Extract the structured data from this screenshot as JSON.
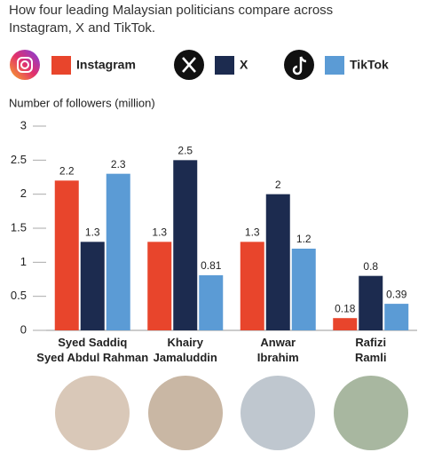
{
  "chart_data": {
    "type": "bar",
    "title": "How four leading Malaysian politicians compare across Instagram, X and TikTok.",
    "y_axis_label": "Number of followers (million)",
    "categories": [
      "Syed Saddiq\nSyed Abdul Rahman",
      "Khairy\nJamaluddin",
      "Anwar\nIbrahim",
      "Rafizi\nRamli"
    ],
    "series": [
      {
        "name": "Instagram",
        "color": "#e8452c",
        "values": [
          2.2,
          1.3,
          1.3,
          0.18
        ]
      },
      {
        "name": "X",
        "color": "#1c2b4f",
        "values": [
          1.3,
          2.5,
          2,
          0.8
        ]
      },
      {
        "name": "TikTok",
        "color": "#5b9bd5",
        "values": [
          2.3,
          0.81,
          1.2,
          0.39
        ]
      }
    ],
    "ylim": [
      0,
      3
    ],
    "yticks": [
      0,
      0.5,
      1,
      1.5,
      2,
      2.5,
      3
    ]
  }
}
